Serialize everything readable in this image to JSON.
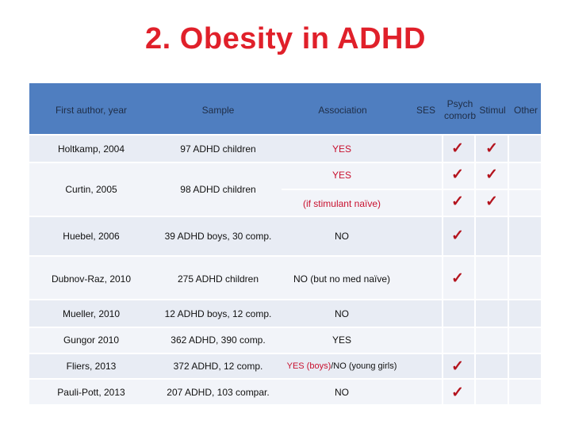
{
  "title": "2. Obesity in ADHD",
  "headers": {
    "author": "First author, year",
    "sample": "Sample",
    "association": "Association",
    "ses": "SES",
    "psych_1": "Psych",
    "psych_2": "comorb",
    "stimul": "Stimul",
    "other": "Other"
  },
  "check_glyph": "✓",
  "rows": [
    {
      "author": "Holtkamp, 2004",
      "sample": "97 ADHD children",
      "assoc": "YES"
    },
    {
      "author": "Curtin, 2005",
      "sample": "98 ADHD children",
      "assoc": "YES",
      "assoc2": "(if stimulant naïve)"
    },
    {
      "author": "Huebel, 2006",
      "sample": "39 ADHD boys, 30 comp.",
      "assoc": "NO"
    },
    {
      "author": "Dubnov-Raz, 2010",
      "sample": "275 ADHD children",
      "assoc": "NO (but no med naïve)"
    },
    {
      "author": "Mueller, 2010",
      "sample": "12 ADHD boys, 12 comp.",
      "assoc": "NO"
    },
    {
      "author": "Gungor 2010",
      "sample": "362 ADHD, 390 comp.",
      "assoc": "YES"
    },
    {
      "author": "Fliers, 2013",
      "sample": "372 ADHD, 12 comp.",
      "assoc_a": "YES (boys)",
      "assoc_b": "/NO (young girls)"
    },
    {
      "author": "Pauli-Pott, 2013",
      "sample": "207 ADHD, 103 compar.",
      "assoc": "NO"
    }
  ]
}
